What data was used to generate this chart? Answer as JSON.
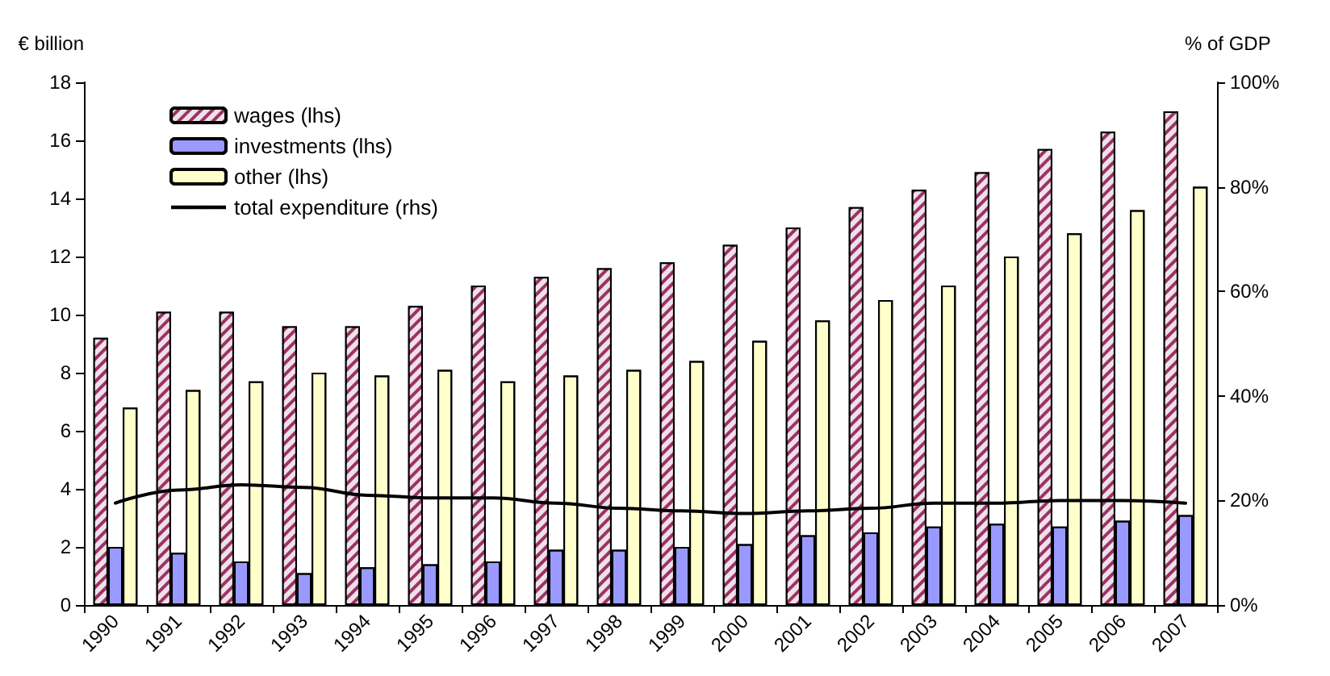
{
  "chart_data": {
    "type": "bar",
    "ylabel": "€ billion",
    "y2label": "% of GDP",
    "categories": [
      "1990",
      "1991",
      "1992",
      "1993",
      "1994",
      "1995",
      "1996",
      "1997",
      "1998",
      "1999",
      "2000",
      "2001",
      "2002",
      "2003",
      "2004",
      "2005",
      "2006",
      "2007"
    ],
    "series": [
      {
        "name": "wages (lhs)",
        "color": "#993366",
        "values": [
          9.2,
          10.1,
          10.1,
          9.6,
          9.6,
          10.3,
          11.0,
          11.3,
          11.6,
          11.8,
          12.4,
          13.0,
          13.7,
          14.3,
          14.9,
          15.7,
          16.3,
          17.0
        ]
      },
      {
        "name": "investments (lhs)",
        "color": "#9999ff",
        "values": [
          2.0,
          1.8,
          1.5,
          1.1,
          1.3,
          1.4,
          1.5,
          1.9,
          1.9,
          2.0,
          2.1,
          2.4,
          2.5,
          2.7,
          2.8,
          2.7,
          2.9,
          3.1
        ]
      },
      {
        "name": "other (lhs)",
        "color": "#ffffcc",
        "values": [
          6.8,
          7.4,
          7.7,
          8.0,
          7.9,
          8.1,
          7.7,
          7.9,
          8.1,
          8.4,
          9.1,
          9.8,
          10.5,
          11.0,
          12.0,
          12.8,
          13.6,
          14.4
        ]
      },
      {
        "name": "total expenditure (rhs)",
        "type": "line",
        "axis": "y2",
        "color": "#000000",
        "values": [
          19.5,
          22,
          23,
          22.5,
          21,
          20.5,
          20.5,
          19.5,
          18.5,
          18,
          17.5,
          18,
          18.5,
          19.5,
          19.5,
          20,
          20,
          19.5
        ]
      }
    ],
    "ylim": [
      0,
      18
    ],
    "yticks": [
      0,
      2,
      4,
      6,
      8,
      10,
      12,
      14,
      16,
      18
    ],
    "y2lim": [
      0,
      100
    ],
    "y2ticks": [
      {
        "value": 0,
        "label": "0%"
      },
      {
        "value": 20,
        "label": "20%"
      },
      {
        "value": 40,
        "label": "40%"
      },
      {
        "value": 60,
        "label": "60%"
      },
      {
        "value": 80,
        "label": "80%"
      },
      {
        "value": 100,
        "label": "100%"
      }
    ],
    "legend": "top left",
    "marker": "none",
    "line_style": "solid",
    "grid": false
  }
}
